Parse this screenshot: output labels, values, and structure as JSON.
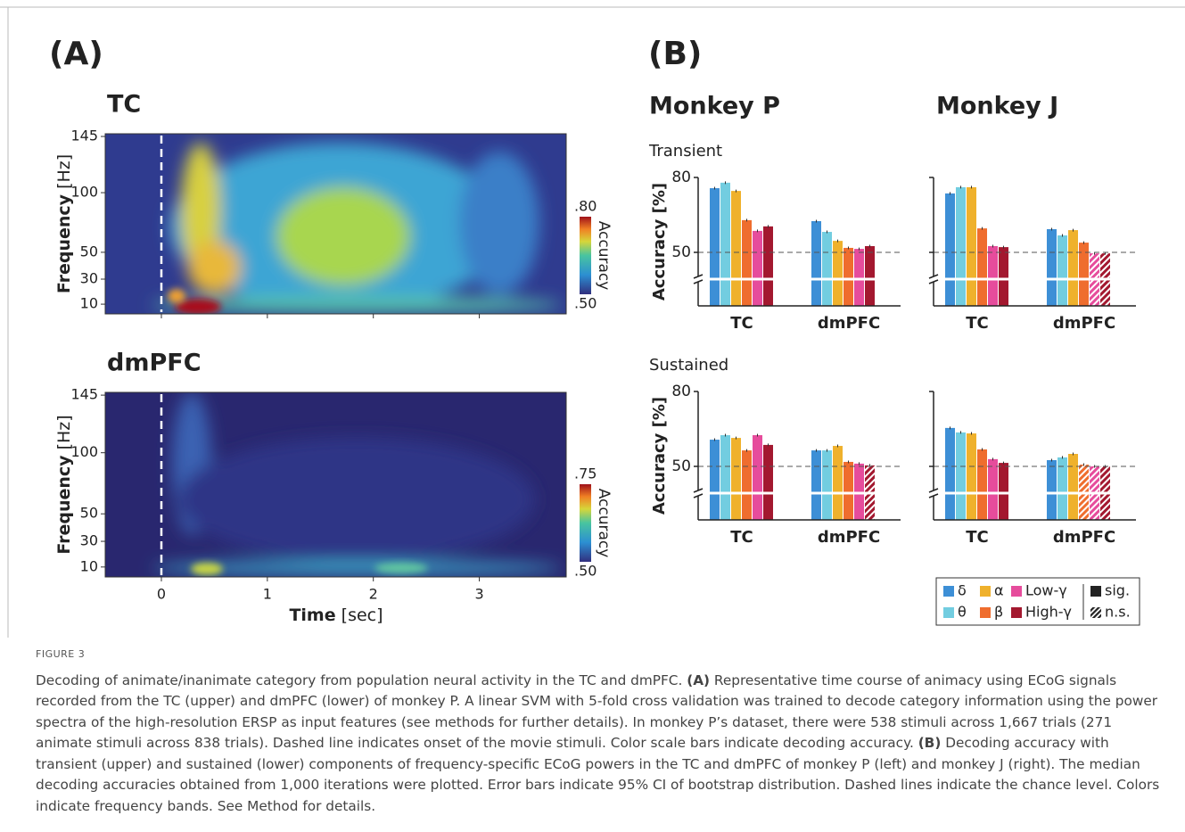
{
  "panel_a": {
    "label": "(A)",
    "time_label": "Time",
    "time_unit": "[sec]",
    "xlim": [
      -0.53,
      3.82
    ],
    "xticks": [
      0,
      1,
      2,
      3
    ],
    "onset": 0,
    "heatmaps": [
      {
        "title": "TC",
        "ylabel": "Frequency",
        "yunit": "[Hz]",
        "yticks": [
          10,
          30,
          50,
          100,
          145
        ],
        "colorbar_label": "Accuracy",
        "clim": [
          {
            "value": 0.5,
            "label": ".50"
          },
          {
            "value": 0.8,
            "label": ".80"
          }
        ]
      },
      {
        "title": "dmPFC",
        "ylabel": "Frequency",
        "yunit": "[Hz]",
        "yticks": [
          10,
          30,
          50,
          100,
          145
        ],
        "colorbar_label": "Accuracy",
        "clim": [
          {
            "value": 0.5,
            "label": ".50"
          },
          {
            "value": 0.75,
            "label": ".75"
          }
        ]
      }
    ]
  },
  "panel_b": {
    "label": "(B)",
    "ylabel": "Accuracy [%]",
    "ylim": [
      50,
      80
    ],
    "yticks": [
      50,
      80
    ],
    "chance": 50,
    "groups": [
      "TC",
      "dmPFC"
    ],
    "monkeys": [
      "Monkey P",
      "Monkey J"
    ],
    "bands": [
      {
        "name": "δ",
        "color": "#3d8fd6"
      },
      {
        "name": "θ",
        "color": "#72cde0"
      },
      {
        "name": "α",
        "color": "#efb12c"
      },
      {
        "name": "β",
        "color": "#ef6d2e"
      },
      {
        "name": "Low-γ",
        "color": "#e64c9c"
      },
      {
        "name": "High-γ",
        "color": "#a3182f"
      }
    ],
    "legend_sig": "sig.",
    "legend_ns": "n.s.",
    "components": [
      {
        "name": "Transient",
        "charts": [
          {
            "values": [
              [
                75.7,
                77.9,
                74.6,
                62.9,
                58.6,
                60.4
              ],
              [
                62.5,
                58.2,
                54.6,
                51.8,
                51.4,
                52.5
              ]
            ],
            "significant": [
              [
                true,
                true,
                true,
                true,
                true,
                true
              ],
              [
                true,
                true,
                true,
                true,
                true,
                true
              ]
            ]
          },
          {
            "values": [
              [
                73.6,
                76.1,
                76.1,
                59.6,
                52.5,
                52.1
              ],
              [
                59.3,
                56.8,
                58.9,
                53.9,
                49.6,
                49.6
              ]
            ],
            "significant": [
              [
                true,
                true,
                true,
                true,
                true,
                true
              ],
              [
                true,
                true,
                true,
                true,
                false,
                false
              ]
            ]
          }
        ]
      },
      {
        "name": "Sustained",
        "charts": [
          {
            "values": [
              [
                60.7,
                62.5,
                61.4,
                56.4,
                62.5,
                58.6
              ],
              [
                56.4,
                56.4,
                58.2,
                51.8,
                51.1,
                50.4
              ]
            ],
            "significant": [
              [
                true,
                true,
                true,
                true,
                true,
                true
              ],
              [
                true,
                true,
                true,
                true,
                true,
                false
              ]
            ]
          },
          {
            "values": [
              [
                65.4,
                63.6,
                63.2,
                56.8,
                52.9,
                51.4
              ],
              [
                52.5,
                53.6,
                55.0,
                50.7,
                50.0,
                50.0
              ]
            ],
            "significant": [
              [
                true,
                true,
                true,
                true,
                true,
                true
              ],
              [
                true,
                true,
                true,
                false,
                false,
                false
              ]
            ]
          }
        ]
      }
    ]
  },
  "caption": {
    "label": "FIGURE 3",
    "segments": [
      "Decoding of animate/inanimate category from population neural activity in the TC and dmPFC. ",
      "(A)",
      " Representative time course of animacy using ECoG signals recorded from the TC (upper) and dmPFC (lower) of monkey P. A linear SVM with 5-fold cross validation was trained to decode category information using the power spectra of the high-resolution ERSP as input features (see methods for further details). In monkey P’s dataset, there were 538 stimuli across 1,667 trials (271 animate stimuli across 838 trials). Dashed line indicates onset of the movie stimuli. Color scale bars indicate decoding accuracy. ",
      "(B)",
      " Decoding accuracy with transient (upper) and sustained (lower) components of frequency-specific ECoG powers in the TC and dmPFC of monkey P (left) and monkey J (right). The median decoding accuracies obtained from 1,000 iterations were plotted. Error bars indicate 95% CI of bootstrap distribution. Dashed lines indicate the chance level. Colors indicate frequency bands. See Method for details."
    ]
  }
}
